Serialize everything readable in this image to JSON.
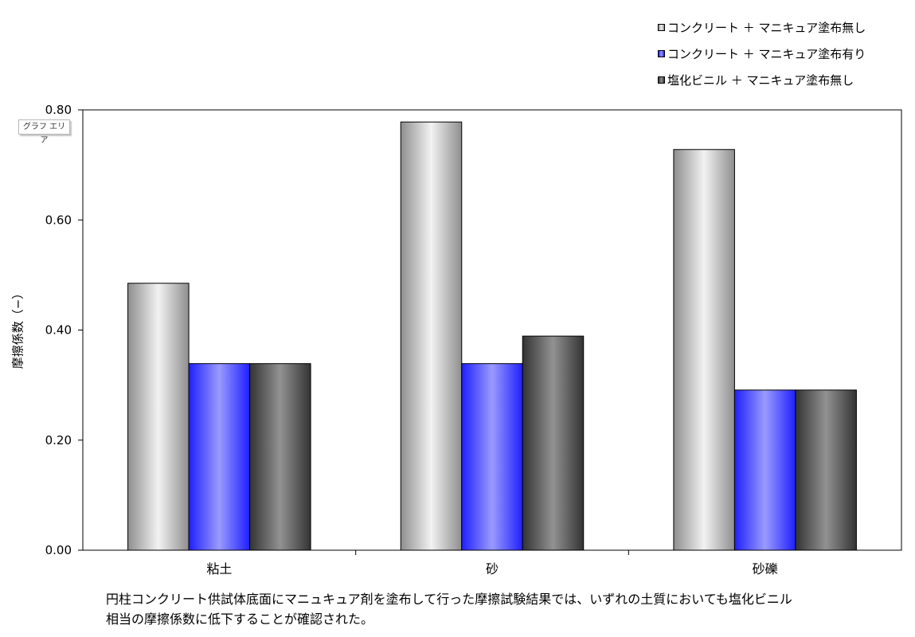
{
  "chart_data": {
    "type": "bar",
    "categories": [
      "粘土",
      "砂",
      "砂礫"
    ],
    "series": [
      {
        "name": "コンクリート ＋ マニキュア塗布無し",
        "values": [
          0.485,
          0.778,
          0.728
        ]
      },
      {
        "name": "コンクリート ＋ マニキュア塗布有り",
        "values": [
          0.339,
          0.339,
          0.291
        ]
      },
      {
        "name": "塩化ビニル ＋ マニキュア塗布無し",
        "values": [
          0.339,
          0.389,
          0.291
        ]
      }
    ],
    "colors": [
      "#d9d9d9",
      "#5a5aff",
      "#7a7a7a"
    ],
    "yticks": [
      "0.00",
      "0.20",
      "0.40",
      "0.60",
      "0.80"
    ],
    "ylim": [
      0,
      0.8
    ],
    "title": "",
    "xlabel": "",
    "ylabel": "摩擦係数（−）",
    "legend_position": "top-right",
    "grid": false
  },
  "chart_area_tag": "グラフ エリア",
  "caption": {
    "line1": "円柱コンクリート供試体底面にマニュキュア剤を塗布して行った摩擦試験結果では、いずれの土質においても塩化ビニル",
    "line2": "相当の摩擦係数に低下することが確認された。"
  }
}
